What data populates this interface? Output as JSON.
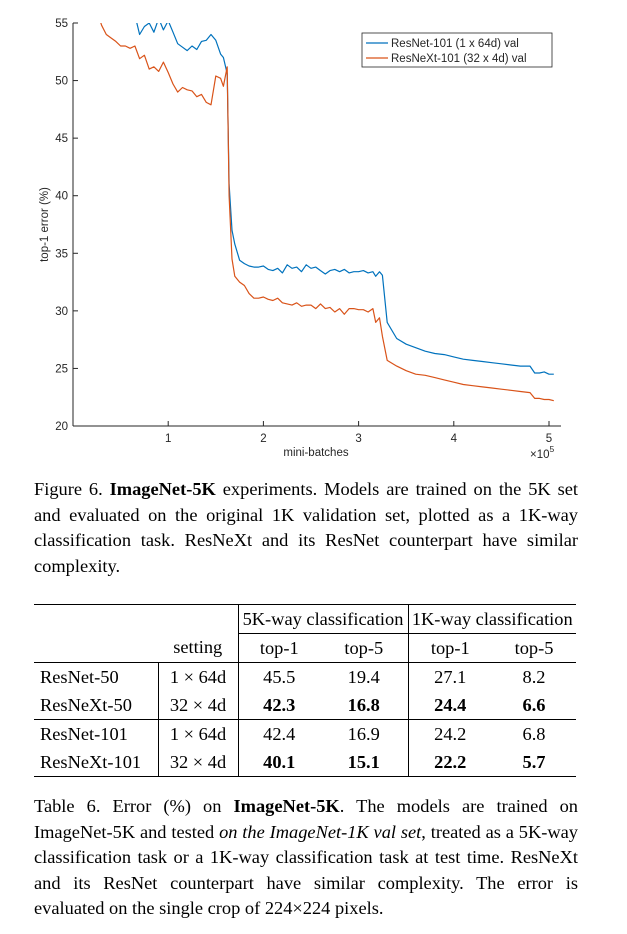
{
  "chart_data": {
    "type": "line",
    "title": "",
    "xlabel": "mini-batches",
    "ylabel": "top-1 error (%)",
    "x_multiplier_label": "×10",
    "x_multiplier_exponent": "5",
    "xlim": [
      0,
      500000
    ],
    "ylim": [
      20,
      55
    ],
    "xticks": [
      100000,
      200000,
      300000,
      400000,
      500000
    ],
    "xtick_labels": [
      "1",
      "2",
      "3",
      "4",
      "5"
    ],
    "yticks": [
      20,
      25,
      30,
      35,
      40,
      45,
      50,
      55
    ],
    "ytick_labels": [
      "20",
      "25",
      "30",
      "35",
      "40",
      "45",
      "50",
      "55"
    ],
    "legend_position": "top-right",
    "grid": false,
    "series": [
      {
        "name": "ResNet-101 (1 x 64d) val",
        "color": "#0072bd",
        "x": [
          27000,
          30000,
          35000,
          40000,
          45000,
          50000,
          55000,
          60000,
          65000,
          70000,
          75000,
          80000,
          85000,
          90000,
          95000,
          100000,
          105000,
          110000,
          115000,
          120000,
          125000,
          130000,
          135000,
          140000,
          145000,
          150000,
          155000,
          158000,
          162000,
          164000,
          167000,
          170000,
          175000,
          180000,
          185000,
          190000,
          195000,
          200000,
          205000,
          210000,
          215000,
          220000,
          225000,
          230000,
          235000,
          240000,
          245000,
          250000,
          255000,
          260000,
          265000,
          270000,
          275000,
          280000,
          285000,
          290000,
          295000,
          300000,
          305000,
          310000,
          315000,
          318000,
          322000,
          325000,
          330000,
          340000,
          350000,
          360000,
          370000,
          380000,
          390000,
          400000,
          410000,
          420000,
          430000,
          440000,
          450000,
          460000,
          470000,
          480000,
          485000,
          490000,
          495000,
          500000,
          505000
        ],
        "y": [
          57.6,
          57.3,
          57.0,
          56.8,
          56.4,
          56.0,
          56.0,
          56.4,
          55.7,
          54.0,
          54.7,
          55.0,
          54.2,
          55.4,
          54.4,
          55.2,
          54.2,
          53.2,
          52.9,
          52.6,
          53.0,
          52.7,
          53.4,
          53.5,
          54.0,
          53.5,
          52.3,
          52.0,
          50.6,
          41.0,
          37.0,
          35.8,
          34.4,
          34.1,
          33.9,
          33.8,
          33.8,
          33.9,
          33.6,
          33.5,
          33.7,
          33.3,
          34.0,
          33.7,
          33.8,
          33.4,
          34.0,
          33.7,
          33.8,
          33.5,
          33.2,
          33.5,
          33.6,
          33.4,
          33.6,
          33.3,
          33.4,
          33.4,
          33.5,
          33.3,
          33.4,
          33.0,
          33.4,
          33.1,
          29.0,
          27.6,
          27.1,
          26.8,
          26.5,
          26.3,
          26.2,
          26.0,
          25.8,
          25.7,
          25.6,
          25.5,
          25.4,
          25.3,
          25.2,
          25.2,
          24.6,
          24.6,
          24.7,
          24.5,
          24.5
        ]
      },
      {
        "name": "ResNeXt-101 (32 x 4d) val",
        "color": "#d95319",
        "x": [
          27000,
          30000,
          35000,
          40000,
          45000,
          50000,
          55000,
          60000,
          65000,
          70000,
          75000,
          80000,
          85000,
          90000,
          95000,
          100000,
          105000,
          110000,
          115000,
          120000,
          125000,
          130000,
          135000,
          140000,
          145000,
          150000,
          155000,
          158000,
          162000,
          164000,
          167000,
          170000,
          175000,
          180000,
          185000,
          190000,
          195000,
          200000,
          205000,
          210000,
          215000,
          220000,
          225000,
          230000,
          235000,
          240000,
          245000,
          250000,
          255000,
          260000,
          265000,
          270000,
          275000,
          280000,
          285000,
          290000,
          295000,
          300000,
          305000,
          310000,
          315000,
          318000,
          322000,
          325000,
          330000,
          340000,
          350000,
          360000,
          370000,
          380000,
          390000,
          400000,
          410000,
          420000,
          430000,
          440000,
          450000,
          460000,
          470000,
          480000,
          485000,
          490000,
          495000,
          500000,
          505000
        ],
        "y": [
          55.6,
          54.8,
          54.0,
          53.7,
          53.4,
          53.0,
          53.0,
          52.8,
          53.0,
          51.9,
          52.2,
          51.0,
          51.2,
          50.8,
          51.6,
          50.7,
          49.7,
          49.0,
          49.4,
          49.2,
          49.1,
          48.6,
          48.8,
          48.1,
          47.9,
          50.4,
          50.2,
          49.5,
          51.2,
          40.0,
          34.5,
          33.0,
          32.5,
          32.2,
          31.5,
          31.1,
          31.1,
          31.2,
          31.0,
          30.9,
          31.1,
          30.7,
          30.6,
          30.5,
          30.7,
          30.4,
          30.5,
          30.5,
          30.2,
          30.6,
          30.2,
          30.3,
          29.9,
          30.2,
          29.7,
          30.2,
          30.2,
          30.1,
          30.1,
          29.9,
          30.2,
          29.0,
          29.4,
          27.8,
          25.7,
          25.2,
          24.8,
          24.5,
          24.4,
          24.2,
          24.0,
          23.8,
          23.6,
          23.5,
          23.4,
          23.3,
          23.2,
          23.1,
          23.0,
          22.9,
          22.4,
          22.4,
          22.3,
          22.3,
          22.2
        ]
      }
    ]
  },
  "figure_caption": {
    "label": "Figure 6.",
    "bold": "ImageNet-5K",
    "text": " experiments. Models are trained on the 5K set and evaluated on the original 1K validation set, plotted as a 1K-way classification task. ResNeXt and its ResNet counterpart have similar complexity."
  },
  "table": {
    "group_headers": [
      "5K-way classification",
      "1K-way classification"
    ],
    "sub_headers": [
      "setting",
      "top-1",
      "top-5",
      "top-1",
      "top-5"
    ],
    "rows": [
      {
        "model": "ResNet-50",
        "setting": "1 × 64d",
        "v5k_top1": "45.5",
        "v5k_top5": "19.4",
        "v1k_top1": "27.1",
        "v1k_top5": "8.2"
      },
      {
        "model": "ResNeXt-50",
        "setting": "32 × 4d",
        "v5k_top1": "42.3",
        "v5k_top5": "16.8",
        "v1k_top1": "24.4",
        "v1k_top5": "6.6"
      },
      {
        "model": "ResNet-101",
        "setting": "1 × 64d",
        "v5k_top1": "42.4",
        "v5k_top5": "16.9",
        "v1k_top1": "24.2",
        "v1k_top5": "6.8"
      },
      {
        "model": "ResNeXt-101",
        "setting": "32 × 4d",
        "v5k_top1": "40.1",
        "v5k_top5": "15.1",
        "v1k_top1": "22.2",
        "v1k_top5": "5.7"
      }
    ]
  },
  "table_caption": {
    "label": "Table 6. Error (%) on ",
    "bold": "ImageNet-5K",
    "text1": ". The models are trained on ImageNet-5K and tested ",
    "italic": "on the ImageNet-1K val set",
    "text2": ", treated as a 5K-way classification task or a 1K-way classification task at test time. ResNeXt and its ResNet counterpart have similar complexity. The error is evaluated on the single crop of 224×224 pixels."
  }
}
